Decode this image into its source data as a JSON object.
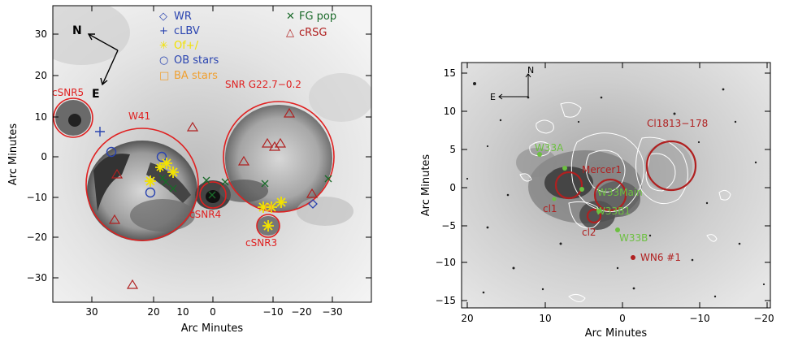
{
  "colors": {
    "red": "#e02020",
    "darkred": "#b02020",
    "blue": "#2a44b0",
    "yellow": "#f2e200",
    "orange": "#f0a030",
    "green": "#1a6a2a",
    "lightgreen": "#6cc040"
  },
  "left_panel": {
    "xlabel": "Arc Minutes",
    "ylabel": "Arc Minutes",
    "xticks": [
      "30",
      "20",
      "10",
      "0",
      "−10",
      "−20",
      "−30"
    ],
    "yticks": [
      "30",
      "20",
      "10",
      "0",
      "−10",
      "−20",
      "−30"
    ],
    "compass": {
      "n": "N",
      "e": "E"
    },
    "legend": [
      {
        "symbol": "◇",
        "label": "WR",
        "color": "blue"
      },
      {
        "symbol": "+",
        "label": "cLBV",
        "color": "blue"
      },
      {
        "symbol": "✳",
        "label": "Of+/",
        "color": "yellow"
      },
      {
        "symbol": "○",
        "label": "OB stars",
        "color": "blue"
      },
      {
        "symbol": "□",
        "label": "BA stars",
        "color": "orange"
      },
      {
        "symbol": "✕",
        "label": "FG pop",
        "color": "green"
      },
      {
        "symbol": "△",
        "label": "cRSG",
        "color": "darkred"
      }
    ],
    "labels": {
      "csnr5": "cSNR5",
      "w41": "W41",
      "snr": "SNR G22.7−0.2",
      "csnr4": "cSNR4",
      "csnr3": "cSNR3"
    }
  },
  "right_panel": {
    "xlabel": "Arc Minutes",
    "ylabel": "Arc Minutes",
    "xticks": [
      "20",
      "10",
      "0",
      "−10",
      "−20"
    ],
    "yticks": [
      "15",
      "10",
      "5",
      "0",
      "−5",
      "−10",
      "−15"
    ],
    "compass": {
      "n": "N",
      "e": "E"
    },
    "labels": {
      "cl1813": "Cl1813−178",
      "w33a": "W33A",
      "mercer1": "Mercer1",
      "w33main": "W33Main",
      "w33b1": "W33B1",
      "w33b": "W33B",
      "cl1": "cl1",
      "cl2": "cl2",
      "wn6": "WN6 #1"
    }
  }
}
